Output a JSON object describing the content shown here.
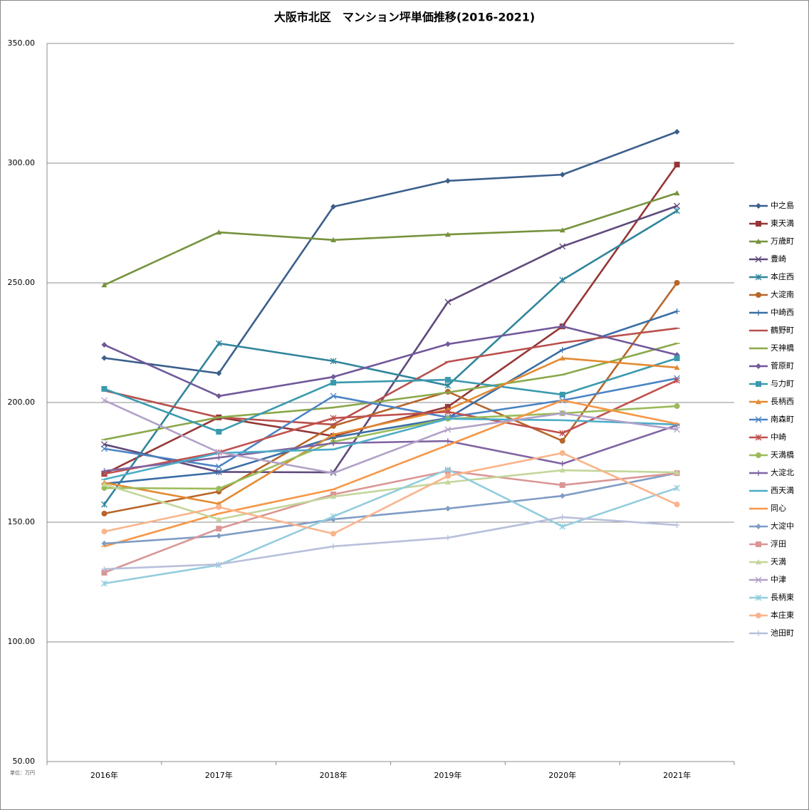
{
  "chart_data": {
    "type": "line",
    "title": "大阪市北区　マンション坪単価推移(2016-2021)",
    "unit_label": "単位：万円",
    "categories": [
      "2016年",
      "2017年",
      "2018年",
      "2019年",
      "2020年",
      "2021年"
    ],
    "ylim": [
      50,
      350
    ],
    "yticks": [
      {
        "value": 50,
        "label": "50.00"
      },
      {
        "value": 100,
        "label": "100.00"
      },
      {
        "value": 150,
        "label": "150.00"
      },
      {
        "value": 200,
        "label": "200.00"
      },
      {
        "value": 250,
        "label": "250.00"
      },
      {
        "value": 300,
        "label": "300.00"
      },
      {
        "value": 350,
        "label": "350.00"
      }
    ],
    "grid": true,
    "legend": "right",
    "series": [
      {
        "name": "中之島",
        "color": "#3c5f8c",
        "marker": "diamond",
        "values": [
          218.6,
          212.2,
          281.8,
          292.6,
          295.2,
          313.1
        ]
      },
      {
        "name": "東天満",
        "color": "#953735",
        "marker": "square",
        "values": [
          170.2,
          193.8,
          186.0,
          198.2,
          231.8,
          299.4
        ]
      },
      {
        "name": "万歳町",
        "color": "#76923c",
        "marker": "triangle",
        "values": [
          249.1,
          271.1,
          267.9,
          270.2,
          272.0,
          287.5
        ]
      },
      {
        "name": "豊崎",
        "color": "#5f497a",
        "marker": "x",
        "values": [
          182.5,
          171.0,
          170.8,
          242.0,
          265.2,
          282.1
        ]
      },
      {
        "name": "本庄西",
        "color": "#31859c",
        "marker": "star",
        "values": [
          157.4,
          224.7,
          217.3,
          207.1,
          251.2,
          280.1
        ]
      },
      {
        "name": "大淀南",
        "color": "#b7652a",
        "marker": "circle",
        "values": [
          153.6,
          162.8,
          190.2,
          204.5,
          184.0,
          250.0
        ]
      },
      {
        "name": "中崎西",
        "color": "#3a6ea5",
        "marker": "plus",
        "values": [
          166.1,
          170.8,
          185.4,
          193.5,
          222.0,
          238.1
        ]
      },
      {
        "name": "鶴野町",
        "color": "#b9504e",
        "marker": "dash",
        "values": [
          205.0,
          193.8,
          190.8,
          217.0,
          225.0,
          231.0
        ]
      },
      {
        "name": "天神橋",
        "color": "#8aa84a",
        "marker": "dash",
        "values": [
          184.5,
          193.8,
          197.9,
          204.2,
          211.6,
          224.7
        ]
      },
      {
        "name": "菅原町",
        "color": "#71589a",
        "marker": "diamond",
        "values": [
          224.1,
          202.7,
          210.7,
          224.4,
          231.8,
          219.9
        ]
      },
      {
        "name": "与力町",
        "color": "#3a9aad",
        "marker": "square",
        "values": [
          205.7,
          187.8,
          208.3,
          209.5,
          203.3,
          218.5
        ]
      },
      {
        "name": "長柄西",
        "color": "#e38a32",
        "marker": "triangle",
        "values": [
          166.5,
          157.7,
          186.6,
          197.0,
          218.5,
          214.6
        ]
      },
      {
        "name": "南森町",
        "color": "#4a84c4",
        "marker": "x",
        "values": [
          180.7,
          173.2,
          202.7,
          193.8,
          200.9,
          210.1
        ]
      },
      {
        "name": "中崎",
        "color": "#c0504d",
        "marker": "star",
        "values": [
          170.2,
          179.2,
          193.5,
          196.1,
          187.2,
          209.2
        ]
      },
      {
        "name": "天満橋",
        "color": "#9bbb59",
        "marker": "circle",
        "values": [
          164.3,
          164.0,
          183.6,
          193.2,
          195.5,
          198.5
        ]
      },
      {
        "name": "大淀北",
        "color": "#8064a2",
        "marker": "plus",
        "values": [
          171.4,
          177.0,
          183.0,
          183.9,
          174.4,
          190.5
        ]
      },
      {
        "name": "西天満",
        "color": "#4bacc6",
        "marker": "dash",
        "values": [
          167.9,
          178.9,
          180.4,
          193.2,
          192.6,
          190.8
        ]
      },
      {
        "name": "同心",
        "color": "#f79646",
        "marker": "dash",
        "values": [
          139.9,
          153.6,
          163.7,
          182.2,
          200.9,
          191.1
        ]
      },
      {
        "name": "大淀中",
        "color": "#7f9cc4",
        "marker": "diamond",
        "values": [
          141.1,
          144.3,
          151.2,
          155.7,
          161.0,
          170.5
        ]
      },
      {
        "name": "浮田",
        "color": "#d99694",
        "marker": "square",
        "values": [
          128.9,
          147.3,
          161.6,
          171.4,
          165.5,
          170.5
        ]
      },
      {
        "name": "天満",
        "color": "#c3d69b",
        "marker": "triangle",
        "values": [
          165.8,
          151.2,
          160.7,
          166.7,
          171.7,
          170.8
        ]
      },
      {
        "name": "中津",
        "color": "#b2a1c7",
        "marker": "x",
        "values": [
          200.9,
          179.2,
          170.5,
          188.7,
          195.5,
          188.7
        ]
      },
      {
        "name": "長柄東",
        "color": "#93cddd",
        "marker": "star",
        "values": [
          124.4,
          132.1,
          152.4,
          172.0,
          148.2,
          164.3
        ]
      },
      {
        "name": "本庄東",
        "color": "#fab48c",
        "marker": "circle",
        "values": [
          146.1,
          156.3,
          145.2,
          169.3,
          178.9,
          157.4
        ]
      },
      {
        "name": "池田町",
        "color": "#b8c0db",
        "marker": "plus",
        "values": [
          130.4,
          132.4,
          139.9,
          143.5,
          152.1,
          148.8
        ]
      }
    ]
  }
}
